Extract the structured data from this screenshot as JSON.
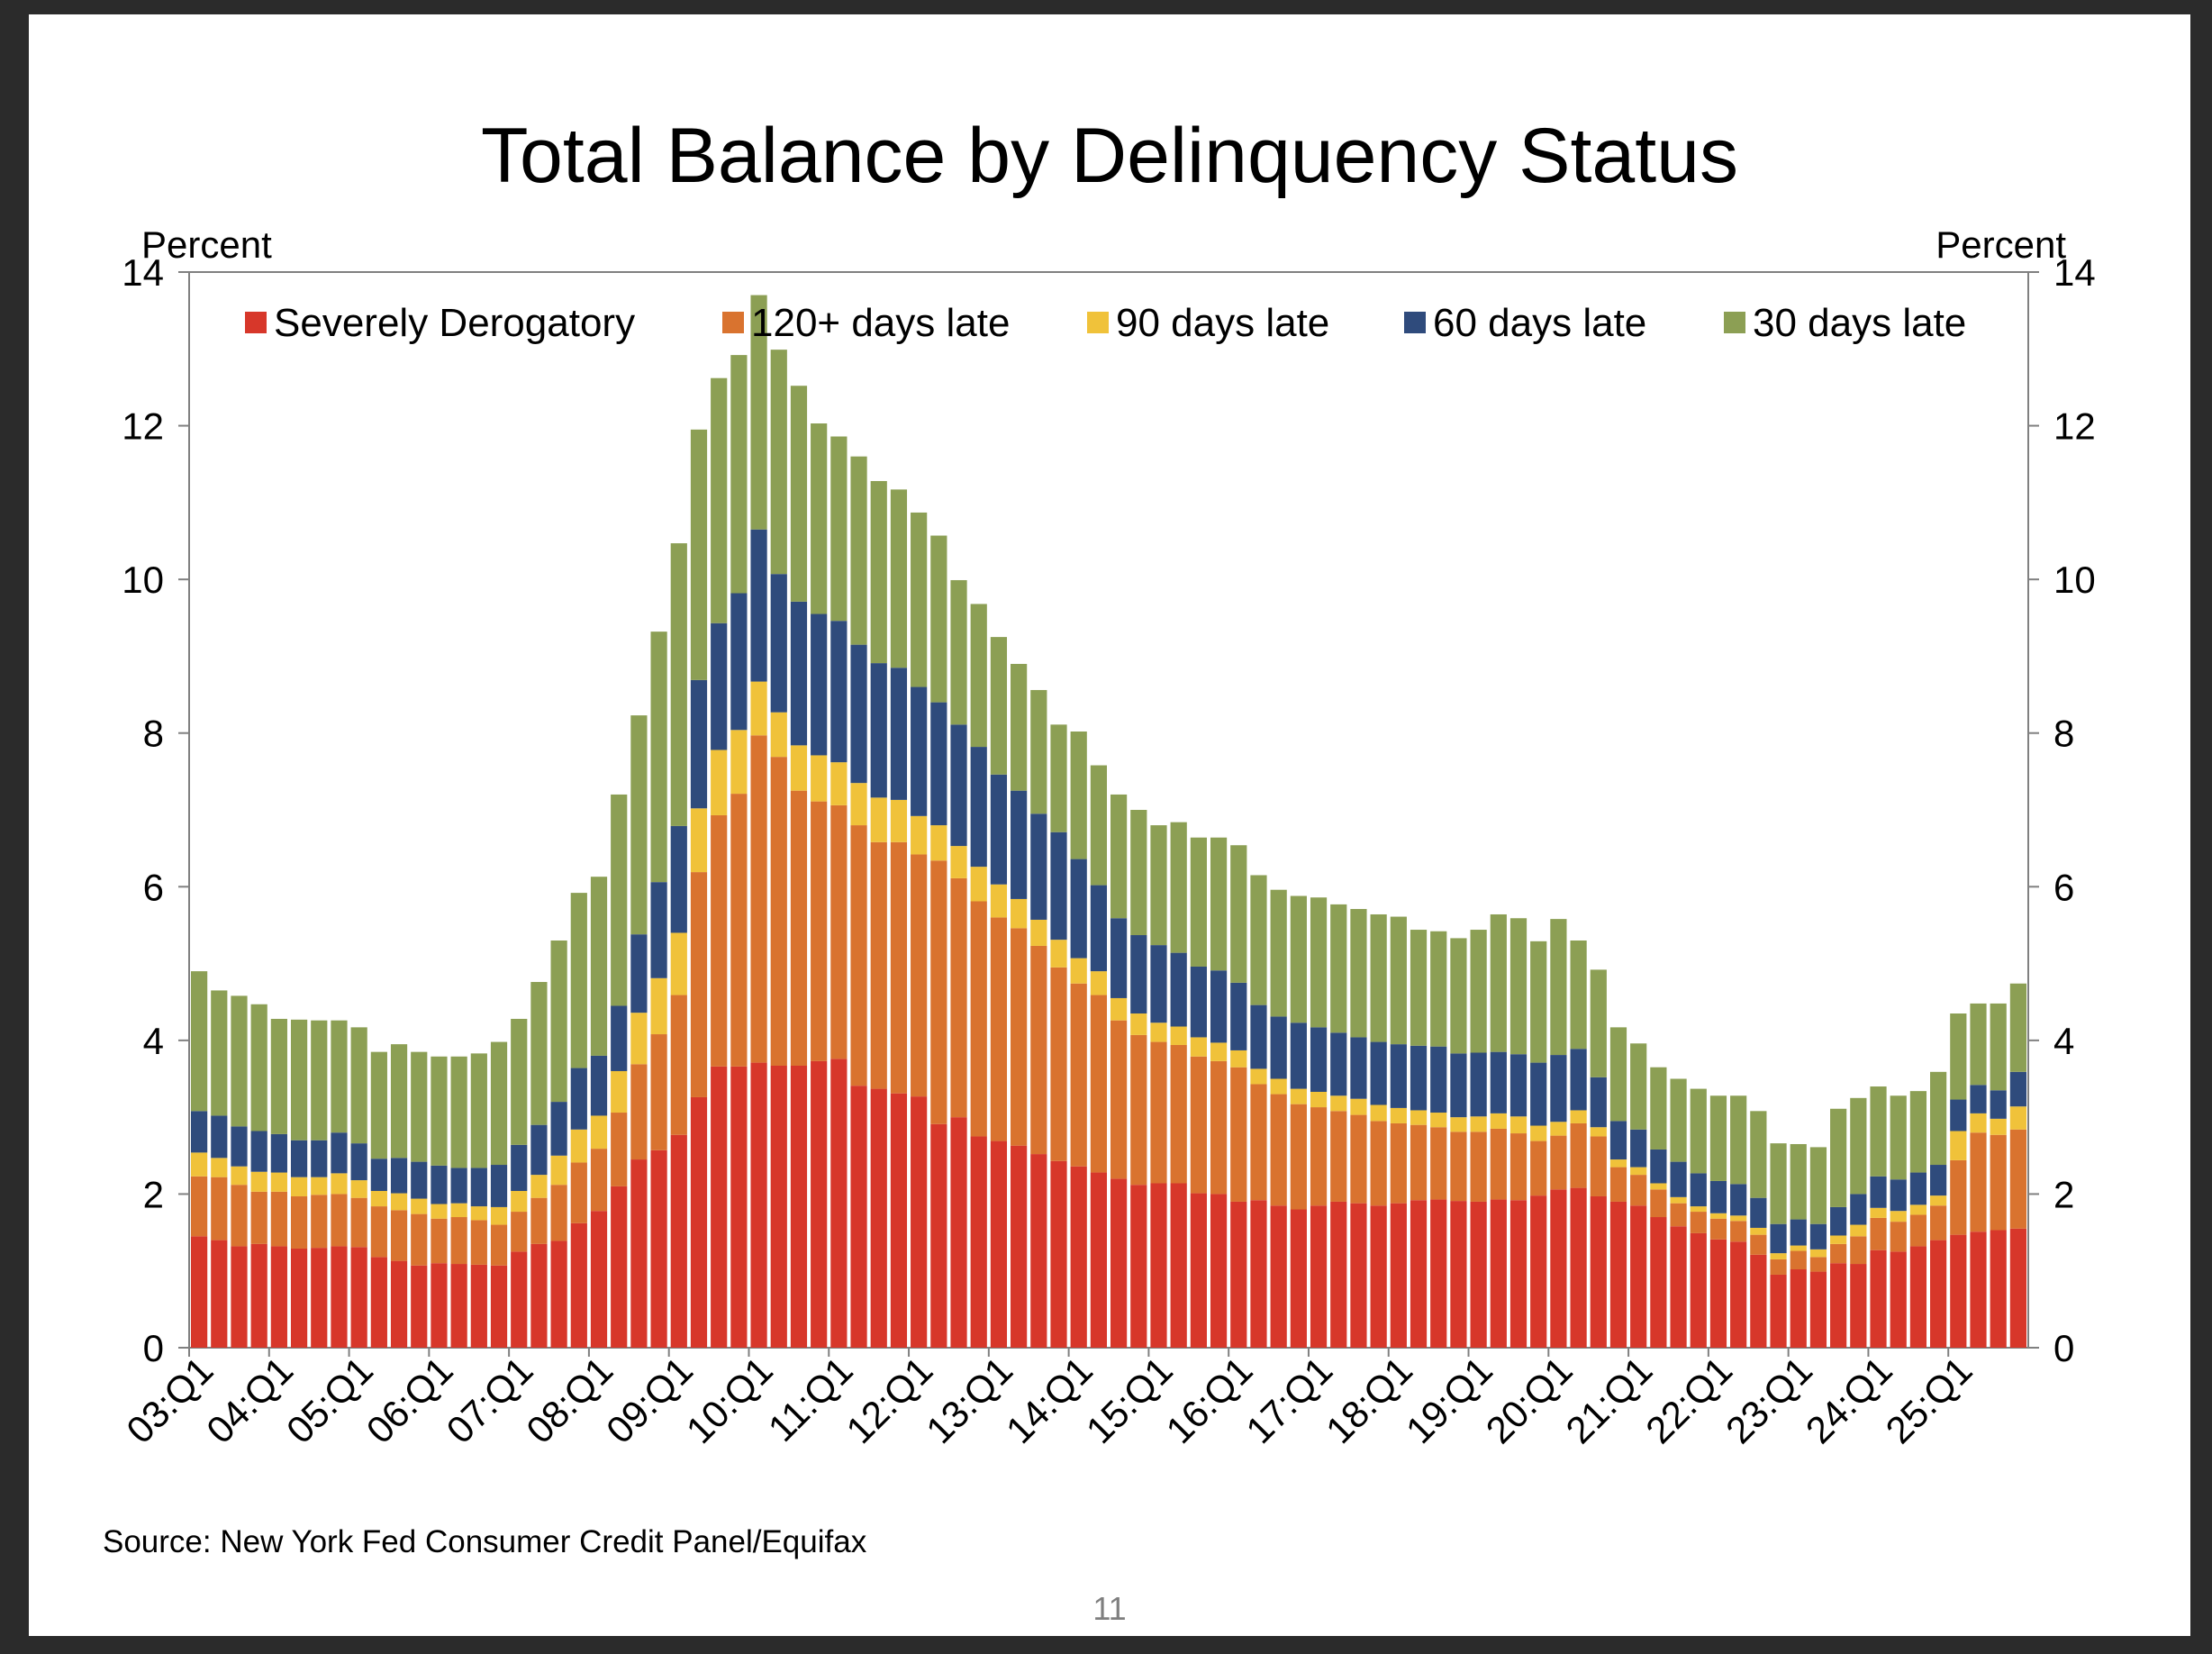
{
  "colors": {
    "severe": "#d7372a",
    "d120": "#d9732f",
    "d90": "#f0c23a",
    "d60": "#2f4b7c",
    "d30": "#8c9f54",
    "axis": "#808080",
    "page_number": "#7f7f7f"
  },
  "chart_data": {
    "type": "bar",
    "stacked": true,
    "title": "Total Balance by Delinquency Status",
    "ylabel_left": "Percent",
    "ylabel_right": "Percent",
    "ylim": [
      0,
      14
    ],
    "yticks": [
      "0",
      "2",
      "4",
      "6",
      "8",
      "10",
      "12",
      "14"
    ],
    "legend_position": "top",
    "x_tick_labels": [
      "03:Q1",
      "04:Q1",
      "05:Q1",
      "06:Q1",
      "07:Q1",
      "08:Q1",
      "09:Q1",
      "10:Q1",
      "11:Q1",
      "12:Q1",
      "13:Q1",
      "14:Q1",
      "15:Q1",
      "16:Q1",
      "17:Q1",
      "18:Q1",
      "19:Q1",
      "20:Q1",
      "21:Q1",
      "22:Q1",
      "23:Q1",
      "24:Q1",
      "25:Q1"
    ],
    "categories": [
      "03:Q1",
      "03:Q2",
      "03:Q3",
      "03:Q4",
      "04:Q1",
      "04:Q2",
      "04:Q3",
      "04:Q4",
      "05:Q1",
      "05:Q2",
      "05:Q3",
      "05:Q4",
      "06:Q1",
      "06:Q2",
      "06:Q3",
      "06:Q4",
      "07:Q1",
      "07:Q2",
      "07:Q3",
      "07:Q4",
      "08:Q1",
      "08:Q2",
      "08:Q3",
      "08:Q4",
      "09:Q1",
      "09:Q2",
      "09:Q3",
      "09:Q4",
      "10:Q1",
      "10:Q2",
      "10:Q3",
      "10:Q4",
      "11:Q1",
      "11:Q2",
      "11:Q3",
      "11:Q4",
      "12:Q1",
      "12:Q2",
      "12:Q3",
      "12:Q4",
      "13:Q1",
      "13:Q2",
      "13:Q3",
      "13:Q4",
      "14:Q1",
      "14:Q2",
      "14:Q3",
      "14:Q4",
      "15:Q1",
      "15:Q2",
      "15:Q3",
      "15:Q4",
      "16:Q1",
      "16:Q2",
      "16:Q3",
      "16:Q4",
      "17:Q1",
      "17:Q2",
      "17:Q3",
      "17:Q4",
      "18:Q1",
      "18:Q2",
      "18:Q3",
      "18:Q4",
      "19:Q1",
      "19:Q2",
      "19:Q3",
      "19:Q4",
      "20:Q1",
      "20:Q2",
      "20:Q3",
      "20:Q4",
      "21:Q1",
      "21:Q2",
      "21:Q3",
      "21:Q4",
      "22:Q1",
      "22:Q2",
      "22:Q3",
      "22:Q4",
      "23:Q1",
      "23:Q2",
      "23:Q3",
      "23:Q4",
      "24:Q1",
      "24:Q2",
      "24:Q3",
      "24:Q4",
      "25:Q1",
      "25:Q2",
      "25:Q3",
      "25:Q4"
    ],
    "series": [
      {
        "name": "Severely Derogatory",
        "color_key": "severe",
        "values": [
          1.45,
          1.4,
          1.32,
          1.35,
          1.32,
          1.29,
          1.3,
          1.32,
          1.31,
          1.18,
          1.13,
          1.07,
          1.1,
          1.09,
          1.08,
          1.07,
          1.25,
          1.35,
          1.39,
          1.62,
          1.78,
          2.1,
          2.45,
          2.57,
          2.77,
          3.26,
          3.66,
          3.66,
          3.71,
          3.67,
          3.67,
          3.73,
          3.76,
          3.41,
          3.37,
          3.31,
          3.27,
          2.91,
          3.0,
          2.75,
          2.69,
          2.63,
          2.52,
          2.43,
          2.36,
          2.28,
          2.2,
          2.12,
          2.14,
          2.14,
          2.01,
          2.0,
          1.9,
          1.92,
          1.85,
          1.8,
          1.85,
          1.9,
          1.88,
          1.85,
          1.88,
          1.92,
          1.93,
          1.91,
          1.9,
          1.93,
          1.92,
          1.98,
          2.06,
          2.08,
          1.97,
          1.9,
          1.85,
          1.7,
          1.58,
          1.49,
          1.41,
          1.38,
          1.21,
          0.95,
          1.02,
          0.99,
          1.1,
          1.09,
          1.27,
          1.25,
          1.32,
          1.4,
          1.47,
          1.51,
          1.53,
          1.55
        ]
      },
      {
        "name": "120+ days late",
        "color_key": "d120",
        "values": [
          0.78,
          0.82,
          0.8,
          0.68,
          0.71,
          0.68,
          0.69,
          0.68,
          0.64,
          0.66,
          0.66,
          0.67,
          0.58,
          0.61,
          0.58,
          0.53,
          0.52,
          0.6,
          0.73,
          0.79,
          0.81,
          0.96,
          1.24,
          1.51,
          1.82,
          2.93,
          3.27,
          3.55,
          4.26,
          4.02,
          3.58,
          3.38,
          3.3,
          3.39,
          3.21,
          3.27,
          3.15,
          3.43,
          3.11,
          3.06,
          2.91,
          2.83,
          2.71,
          2.52,
          2.38,
          2.31,
          2.06,
          1.95,
          1.84,
          1.8,
          1.78,
          1.73,
          1.75,
          1.51,
          1.45,
          1.37,
          1.28,
          1.18,
          1.15,
          1.1,
          1.04,
          0.98,
          0.94,
          0.9,
          0.91,
          0.92,
          0.87,
          0.71,
          0.7,
          0.84,
          0.78,
          0.45,
          0.4,
          0.36,
          0.3,
          0.28,
          0.27,
          0.27,
          0.26,
          0.2,
          0.24,
          0.19,
          0.25,
          0.36,
          0.42,
          0.39,
          0.41,
          0.45,
          0.97,
          1.29,
          1.24,
          1.29
        ]
      },
      {
        "name": "90 days late",
        "color_key": "d90",
        "values": [
          0.31,
          0.25,
          0.24,
          0.26,
          0.25,
          0.25,
          0.23,
          0.27,
          0.23,
          0.2,
          0.22,
          0.2,
          0.19,
          0.18,
          0.18,
          0.23,
          0.27,
          0.3,
          0.38,
          0.43,
          0.43,
          0.54,
          0.67,
          0.73,
          0.81,
          0.83,
          0.85,
          0.83,
          0.7,
          0.58,
          0.59,
          0.6,
          0.56,
          0.55,
          0.58,
          0.55,
          0.5,
          0.46,
          0.42,
          0.45,
          0.43,
          0.38,
          0.34,
          0.36,
          0.33,
          0.31,
          0.29,
          0.28,
          0.25,
          0.24,
          0.25,
          0.24,
          0.22,
          0.2,
          0.2,
          0.2,
          0.2,
          0.2,
          0.21,
          0.21,
          0.2,
          0.19,
          0.19,
          0.19,
          0.2,
          0.2,
          0.22,
          0.2,
          0.18,
          0.17,
          0.12,
          0.1,
          0.1,
          0.08,
          0.08,
          0.07,
          0.07,
          0.07,
          0.09,
          0.08,
          0.07,
          0.1,
          0.11,
          0.15,
          0.13,
          0.14,
          0.13,
          0.13,
          0.38,
          0.25,
          0.21,
          0.3
        ]
      },
      {
        "name": "60 days late",
        "color_key": "d60",
        "values": [
          0.54,
          0.55,
          0.52,
          0.53,
          0.5,
          0.48,
          0.48,
          0.53,
          0.48,
          0.42,
          0.46,
          0.48,
          0.5,
          0.46,
          0.5,
          0.55,
          0.6,
          0.65,
          0.7,
          0.8,
          0.78,
          0.85,
          1.02,
          1.25,
          1.39,
          1.67,
          1.65,
          1.78,
          1.98,
          1.8,
          1.87,
          1.84,
          1.84,
          1.8,
          1.75,
          1.72,
          1.68,
          1.6,
          1.58,
          1.56,
          1.43,
          1.41,
          1.38,
          1.4,
          1.29,
          1.12,
          1.04,
          1.02,
          1.01,
          0.96,
          0.92,
          0.94,
          0.88,
          0.83,
          0.81,
          0.86,
          0.84,
          0.82,
          0.8,
          0.82,
          0.83,
          0.84,
          0.86,
          0.83,
          0.83,
          0.8,
          0.81,
          0.82,
          0.87,
          0.8,
          0.65,
          0.5,
          0.49,
          0.44,
          0.46,
          0.43,
          0.42,
          0.41,
          0.39,
          0.38,
          0.34,
          0.33,
          0.37,
          0.4,
          0.41,
          0.41,
          0.42,
          0.4,
          0.41,
          0.37,
          0.37,
          0.45
        ]
      },
      {
        "name": "30 days late",
        "color_key": "d30",
        "values": [
          1.82,
          1.63,
          1.7,
          1.65,
          1.5,
          1.57,
          1.56,
          1.46,
          1.51,
          1.39,
          1.48,
          1.43,
          1.42,
          1.45,
          1.49,
          1.6,
          1.64,
          1.86,
          2.1,
          2.28,
          2.33,
          2.75,
          2.85,
          3.26,
          3.68,
          3.26,
          3.19,
          3.1,
          3.05,
          2.92,
          2.81,
          2.48,
          2.4,
          2.45,
          2.37,
          2.32,
          2.27,
          2.17,
          1.88,
          1.86,
          1.79,
          1.65,
          1.61,
          1.4,
          1.66,
          1.56,
          1.61,
          1.63,
          1.56,
          1.7,
          1.68,
          1.73,
          1.79,
          1.69,
          1.65,
          1.65,
          1.69,
          1.67,
          1.67,
          1.66,
          1.66,
          1.51,
          1.5,
          1.5,
          1.6,
          1.79,
          1.77,
          1.58,
          1.77,
          1.41,
          1.4,
          1.22,
          1.12,
          1.07,
          1.08,
          1.1,
          1.11,
          1.15,
          1.13,
          1.05,
          0.98,
          1.0,
          1.28,
          1.25,
          1.17,
          1.09,
          1.06,
          1.21,
          1.12,
          1.06,
          1.13,
          1.15
        ]
      }
    ],
    "source": "Source: New York Fed Consumer Credit Panel/Equifax",
    "page_number": "11"
  }
}
